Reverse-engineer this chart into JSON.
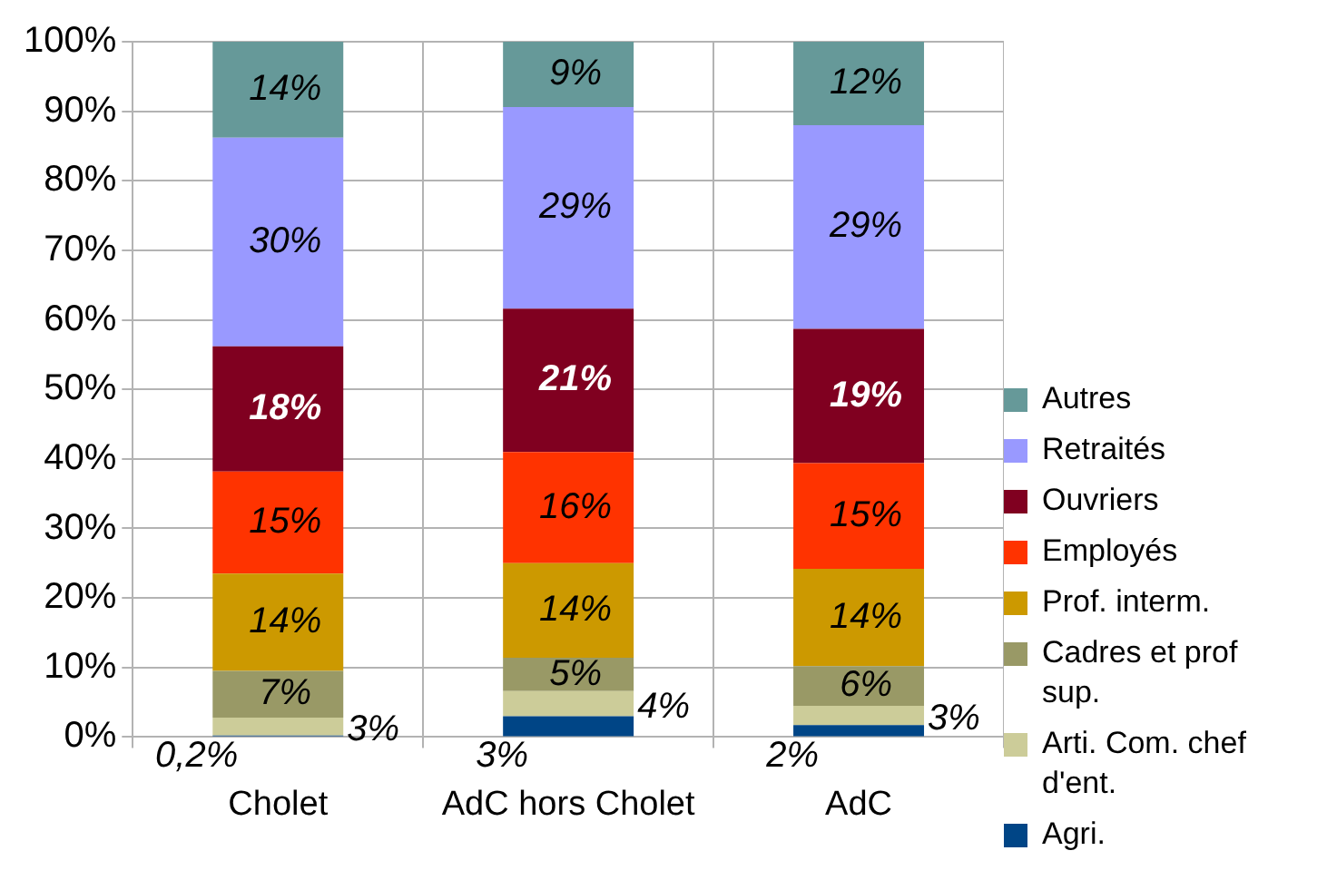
{
  "chart_data": {
    "type": "bar",
    "stacked": true,
    "categories": [
      "Cholet",
      "AdC hors Cholet",
      "AdC"
    ],
    "series": [
      {
        "name": "Agri.",
        "color": "#004586",
        "values": [
          0.2,
          3,
          1.7
        ],
        "value_labels": [
          "0,2%",
          "3%",
          "2%"
        ]
      },
      {
        "name": "Arti. Com. chef d'ent.",
        "color": "#cccc99",
        "values": [
          2.6,
          3.6,
          2.8
        ],
        "value_labels": [
          "3%",
          "4%",
          "3%"
        ]
      },
      {
        "name": "Cadres et prof sup.",
        "color": "#999966",
        "values": [
          6.7,
          4.8,
          5.7
        ],
        "value_labels": [
          "7%",
          "5%",
          "6%"
        ]
      },
      {
        "name": "Prof. interm.",
        "color": "#cc9900",
        "values": [
          14,
          13.6,
          14
        ],
        "value_labels": [
          "14%",
          "14%",
          "14%"
        ]
      },
      {
        "name": "Employés",
        "color": "#ff3300",
        "values": [
          14.7,
          16,
          15.2
        ],
        "value_labels": [
          "15%",
          "16%",
          "15%"
        ]
      },
      {
        "name": "Ouvriers",
        "color": "#800020",
        "values": [
          18,
          20.6,
          19.3
        ],
        "value_labels": [
          "18%",
          "21%",
          "19%"
        ]
      },
      {
        "name": "Retraités",
        "color": "#9999ff",
        "values": [
          30,
          29,
          29.3
        ],
        "value_labels": [
          "30%",
          "29%",
          "29%"
        ]
      },
      {
        "name": "Autres",
        "color": "#669999",
        "values": [
          13.8,
          9.4,
          12
        ],
        "value_labels": [
          "14%",
          "9%",
          "12%"
        ]
      }
    ],
    "ylim": [
      0,
      100
    ],
    "yticks": [
      {
        "value": 0,
        "label": "0%"
      },
      {
        "value": 10,
        "label": "10%"
      },
      {
        "value": 20,
        "label": "20%"
      },
      {
        "value": 30,
        "label": "30%"
      },
      {
        "value": 40,
        "label": "40%"
      },
      {
        "value": 50,
        "label": "50%"
      },
      {
        "value": 60,
        "label": "60%"
      },
      {
        "value": 70,
        "label": "70%"
      },
      {
        "value": 80,
        "label": "80%"
      },
      {
        "value": 90,
        "label": "90%"
      },
      {
        "value": 100,
        "label": "100%"
      }
    ],
    "grid": true,
    "legend": "right"
  }
}
